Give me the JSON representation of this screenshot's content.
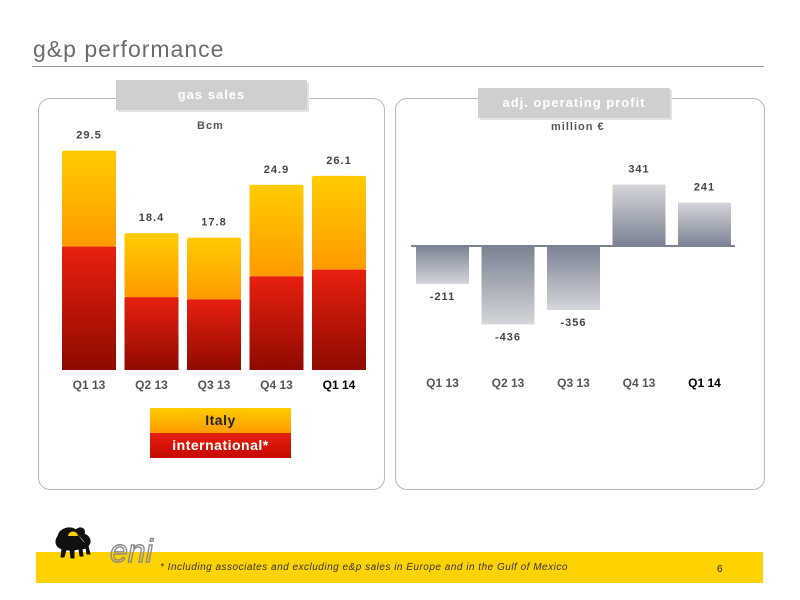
{
  "page": {
    "title": "g&p performance",
    "page_number": "6"
  },
  "footnote": "* Including associates and excluding e&p sales in Europe and in the Gulf of Mexico",
  "logo": {
    "text": "eni",
    "icon": "six-legged-dog-icon"
  },
  "colors": {
    "italy_top": "#ffcc00",
    "italy_bottom": "#ff9a00",
    "intl_top": "#e8200f",
    "intl_bottom": "#8f0a00",
    "profit_top": "#d4d6da",
    "profit_bottom": "#7a8293",
    "footer": "#ffd200"
  },
  "chart_data": [
    {
      "type": "bar",
      "title": "gas sales",
      "ylabel": "Bcm",
      "categories": [
        "Q1 13",
        "Q2 13",
        "Q3 13",
        "Q4 13",
        "Q1 14"
      ],
      "highlight_category": "Q1 14",
      "series": [
        {
          "name": "international*",
          "values": [
            16.6,
            9.8,
            9.5,
            12.6,
            13.5
          ]
        },
        {
          "name": "Italy",
          "values": [
            12.9,
            8.6,
            8.3,
            12.3,
            12.6
          ]
        }
      ],
      "totals": [
        "29.5",
        "18.4",
        "17.8",
        "24.9",
        "26.1"
      ],
      "total_values": [
        29.5,
        18.4,
        17.8,
        24.9,
        26.1
      ],
      "stacked": true,
      "ylim": [
        0,
        32
      ],
      "legend_placement": "bottom-center",
      "grid": false
    },
    {
      "type": "bar",
      "title": "adj. operating profit",
      "ylabel": "million €",
      "categories": [
        "Q1 13",
        "Q2 13",
        "Q3 13",
        "Q4 13",
        "Q1 14"
      ],
      "highlight_category": "Q1 14",
      "values": [
        -211,
        -436,
        -356,
        341,
        241
      ],
      "value_labels": [
        "-211",
        "-436",
        "-356",
        "341",
        "241"
      ],
      "ylim": [
        -500,
        400
      ],
      "grid": false
    }
  ]
}
